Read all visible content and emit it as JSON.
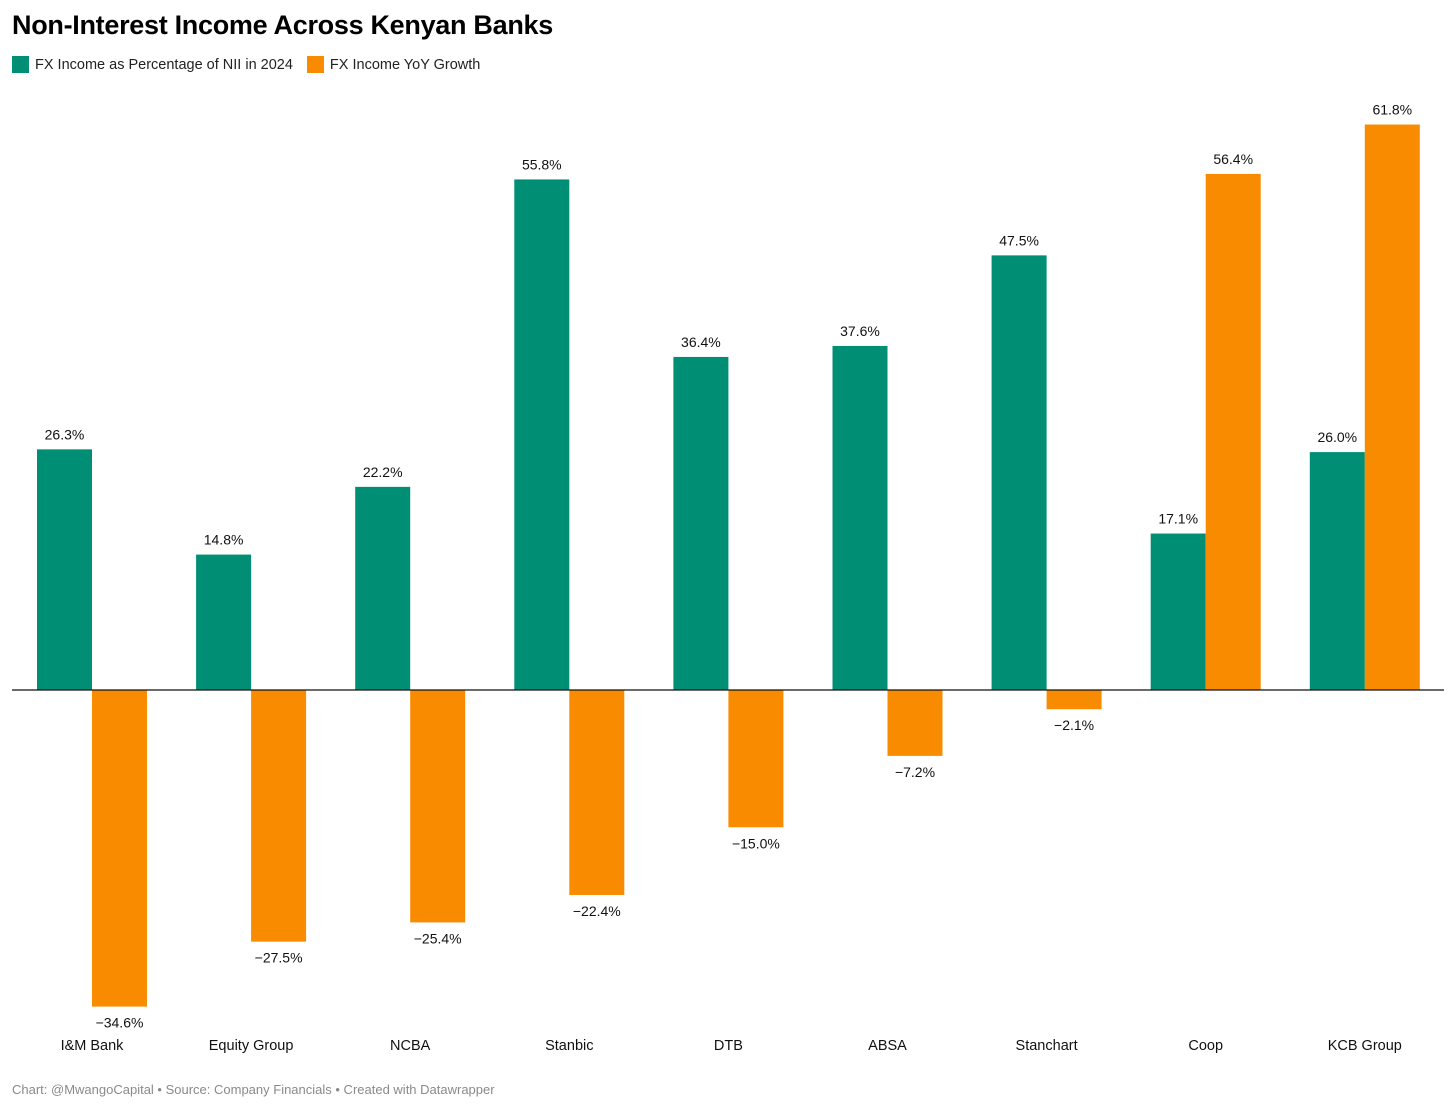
{
  "chart_data": {
    "type": "bar",
    "title": "Non-Interest Income Across Kenyan Banks",
    "categories": [
      "I&M Bank",
      "Equity Group",
      "NCBA",
      "Stanbic",
      "DTB",
      "ABSA",
      "Stanchart",
      "Coop",
      "KCB Group"
    ],
    "series": [
      {
        "name": "FX Income as Percentage of NII in 2024",
        "color": "#008f74",
        "values": [
          26.3,
          14.8,
          22.2,
          55.8,
          36.4,
          37.6,
          47.5,
          17.1,
          26.0
        ],
        "labels": [
          "26.3%",
          "14.8%",
          "22.2%",
          "55.8%",
          "36.4%",
          "37.6%",
          "47.5%",
          "17.1%",
          "26.0%"
        ]
      },
      {
        "name": "FX Income YoY Growth",
        "color": "#f88b00",
        "values": [
          -34.6,
          -27.5,
          -25.4,
          -22.4,
          -15.0,
          -7.2,
          -2.1,
          56.4,
          61.8
        ],
        "labels": [
          "−34.6%",
          "−27.5%",
          "−25.4%",
          "−22.4%",
          "−15.0%",
          "−7.2%",
          "−2.1%",
          "56.4%",
          "61.8%"
        ]
      }
    ],
    "ylim": [
      -34.6,
      61.8
    ],
    "legend_position": "top-left",
    "grid": false
  },
  "footer": "Chart: @MwangoCapital • Source: Company Financials • Created with Datawrapper"
}
